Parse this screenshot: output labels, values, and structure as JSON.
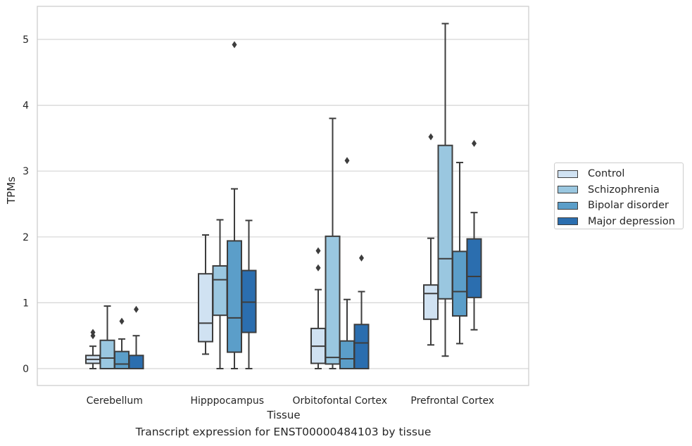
{
  "chart_data": {
    "type": "box",
    "caption": "Transcript expression for ENST00000484103 by tissue",
    "xlabel": "Tissue",
    "ylabel": "TPMs",
    "ylim": [
      -0.25,
      5.5
    ],
    "yticks": [
      0,
      1,
      2,
      3,
      4,
      5
    ],
    "grid": true,
    "legend_position": "right",
    "categories": [
      "Cerebellum",
      "Hipppocampus",
      "Orbitofontal Cortex",
      "Prefrontal Cortex"
    ],
    "series": [
      {
        "name": "Control",
        "color": "#d0e2f2",
        "boxes": [
          {
            "whislo": 0.0,
            "q1": 0.08,
            "med": 0.14,
            "q3": 0.2,
            "whishi": 0.34,
            "fliers": [
              0.5,
              0.55
            ]
          },
          {
            "whislo": 0.22,
            "q1": 0.41,
            "med": 0.69,
            "q3": 1.44,
            "whishi": 2.03,
            "fliers": []
          },
          {
            "whislo": 0.0,
            "q1": 0.08,
            "med": 0.34,
            "q3": 0.61,
            "whishi": 1.2,
            "fliers": [
              1.53,
              1.79
            ]
          },
          {
            "whislo": 0.36,
            "q1": 0.75,
            "med": 1.14,
            "q3": 1.27,
            "whishi": 1.98,
            "fliers": [
              3.52
            ]
          }
        ]
      },
      {
        "name": "Schizophrenia",
        "color": "#9ac7e0",
        "boxes": [
          {
            "whislo": 0.0,
            "q1": 0.0,
            "med": 0.16,
            "q3": 0.43,
            "whishi": 0.95,
            "fliers": []
          },
          {
            "whislo": 0.0,
            "q1": 0.81,
            "med": 1.35,
            "q3": 1.56,
            "whishi": 2.26,
            "fliers": []
          },
          {
            "whislo": 0.0,
            "q1": 0.07,
            "med": 0.17,
            "q3": 2.01,
            "whishi": 3.8,
            "fliers": []
          },
          {
            "whislo": 0.19,
            "q1": 1.06,
            "med": 1.67,
            "q3": 3.39,
            "whishi": 5.24,
            "fliers": []
          }
        ]
      },
      {
        "name": "Bipolar disorder",
        "color": "#5b9ec9",
        "boxes": [
          {
            "whislo": 0.0,
            "q1": 0.0,
            "med": 0.07,
            "q3": 0.26,
            "whishi": 0.45,
            "fliers": [
              0.72
            ]
          },
          {
            "whislo": 0.0,
            "q1": 0.25,
            "med": 0.77,
            "q3": 1.94,
            "whishi": 2.73,
            "fliers": [
              4.92
            ]
          },
          {
            "whislo": 0.0,
            "q1": 0.0,
            "med": 0.15,
            "q3": 0.42,
            "whishi": 1.05,
            "fliers": [
              3.16
            ]
          },
          {
            "whislo": 0.38,
            "q1": 0.8,
            "med": 1.17,
            "q3": 1.78,
            "whishi": 3.13,
            "fliers": []
          }
        ]
      },
      {
        "name": "Major depression",
        "color": "#2b6eaf",
        "boxes": [
          {
            "whislo": 0.0,
            "q1": 0.0,
            "med": 0.0,
            "q3": 0.2,
            "whishi": 0.5,
            "fliers": [
              0.9
            ]
          },
          {
            "whislo": 0.0,
            "q1": 0.55,
            "med": 1.01,
            "q3": 1.49,
            "whishi": 2.25,
            "fliers": []
          },
          {
            "whislo": 0.0,
            "q1": 0.0,
            "med": 0.39,
            "q3": 0.67,
            "whishi": 1.17,
            "fliers": [
              1.68
            ]
          },
          {
            "whislo": 0.59,
            "q1": 1.08,
            "med": 1.4,
            "q3": 1.97,
            "whishi": 2.37,
            "fliers": [
              3.42
            ]
          }
        ]
      }
    ]
  }
}
